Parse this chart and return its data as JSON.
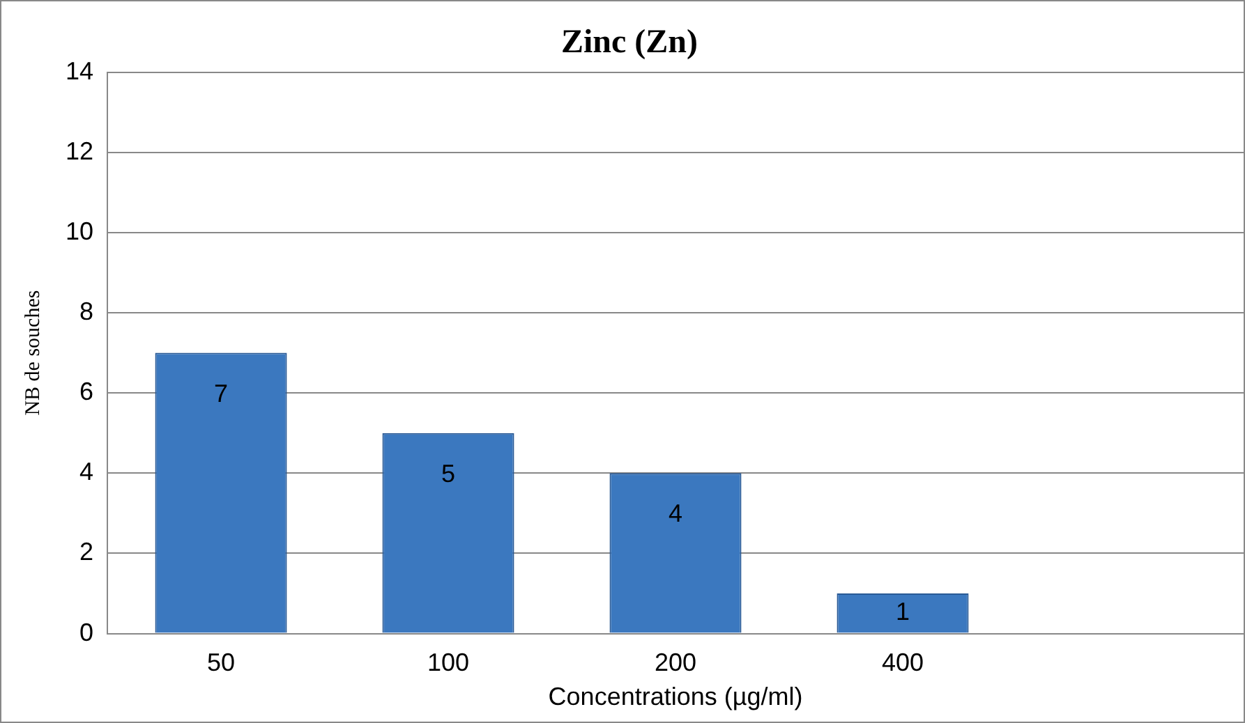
{
  "chart_data": {
    "type": "bar",
    "title": "Zinc (Zn)",
    "xlabel": "Concentrations (µg/ml)",
    "ylabel": "NB de souches",
    "categories": [
      "50",
      "100",
      "200",
      "400",
      null
    ],
    "values": [
      7,
      5,
      4,
      1,
      null
    ],
    "color": "#3b78bf",
    "ylim": [
      0,
      14
    ],
    "yticks": [
      0,
      2,
      4,
      6,
      8,
      10,
      12,
      14
    ],
    "grid": "y",
    "legend": false,
    "data_labels": true
  }
}
